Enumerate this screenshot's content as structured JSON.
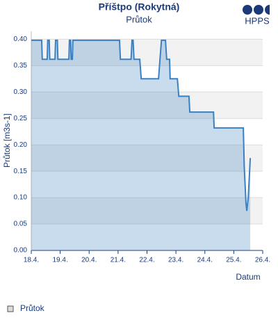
{
  "chart_data": {
    "type": "area",
    "title": "Příštpo (Rokytná)",
    "subtitle": "Průtok",
    "x_label": "Datum",
    "y_label": "Průtok [m3s-1]",
    "x": [
      18.0,
      18.36,
      18.38,
      18.55,
      18.57,
      18.62,
      18.64,
      18.82,
      18.84,
      18.9,
      18.92,
      19.3,
      19.32,
      19.36,
      19.38,
      19.42,
      19.44,
      21.05,
      21.08,
      21.45,
      21.48,
      21.52,
      21.55,
      21.75,
      21.8,
      22.4,
      22.45,
      22.5,
      22.64,
      22.68,
      22.78,
      22.8,
      23.05,
      23.1,
      23.45,
      23.48,
      24.3,
      24.32,
      25.33,
      25.36,
      25.42,
      25.45,
      25.5,
      25.57
    ],
    "series": [
      {
        "name": "Průtok",
        "color": "#3a80c3",
        "values": [
          0.398,
          0.398,
          0.362,
          0.362,
          0.398,
          0.398,
          0.362,
          0.362,
          0.398,
          0.398,
          0.362,
          0.362,
          0.398,
          0.398,
          0.362,
          0.362,
          0.398,
          0.398,
          0.362,
          0.362,
          0.398,
          0.398,
          0.362,
          0.362,
          0.325,
          0.325,
          0.362,
          0.398,
          0.398,
          0.362,
          0.362,
          0.325,
          0.325,
          0.292,
          0.292,
          0.262,
          0.262,
          0.232,
          0.232,
          0.16,
          0.09,
          0.075,
          0.1,
          0.175
        ]
      }
    ],
    "xlim": [
      18,
      26
    ],
    "xticks": [
      {
        "value": 18,
        "label": "18.4."
      },
      {
        "value": 19,
        "label": "19.4."
      },
      {
        "value": 20,
        "label": "20.4."
      },
      {
        "value": 21,
        "label": "21.4."
      },
      {
        "value": 22,
        "label": "22.4."
      },
      {
        "value": 23,
        "label": "23.4."
      },
      {
        "value": 24,
        "label": "24.4."
      },
      {
        "value": 25,
        "label": "25.4."
      },
      {
        "value": 26,
        "label": "26.4."
      }
    ],
    "ylim": [
      0,
      0.415
    ],
    "yticks": [
      {
        "value": 0,
        "label": "0.00"
      },
      0.05,
      {
        "value": 0.1,
        "label": "0.10"
      },
      0.15,
      {
        "value": 0.2,
        "label": "0.20"
      },
      0.25,
      {
        "value": 0.3,
        "label": "0.30"
      },
      0.35,
      {
        "value": 0.4,
        "label": "0.40"
      }
    ],
    "grid": true
  },
  "logo": "HPPS"
}
